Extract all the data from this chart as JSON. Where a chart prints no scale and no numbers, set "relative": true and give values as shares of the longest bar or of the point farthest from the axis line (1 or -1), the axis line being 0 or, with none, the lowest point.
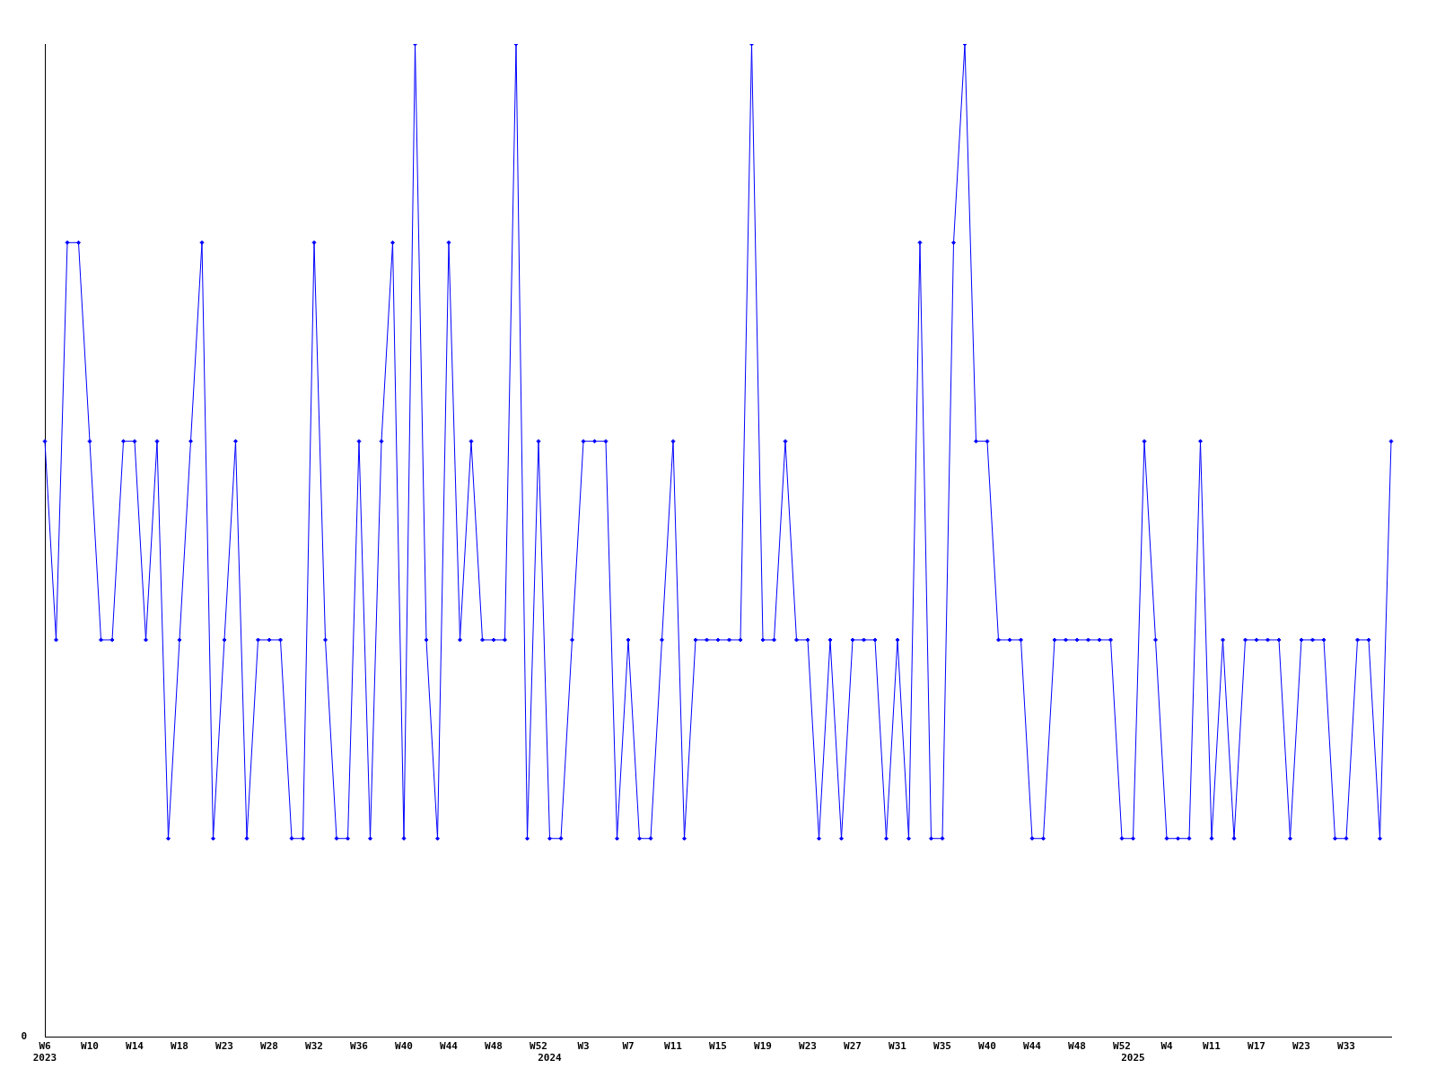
{
  "chart_data": {
    "type": "line",
    "relative": true,
    "annotations": [
      "0"
    ],
    "grid": false,
    "legend": false,
    "marker": "diamond",
    "line_style": "solid",
    "categories": [
      "W6\n2023",
      null,
      null,
      null,
      "W10",
      null,
      null,
      null,
      "W14",
      null,
      null,
      null,
      "W18",
      null,
      null,
      null,
      "W23",
      null,
      null,
      null,
      "W28",
      null,
      null,
      null,
      "W32",
      null,
      null,
      null,
      "W36",
      null,
      null,
      null,
      "W40",
      null,
      null,
      null,
      "W44",
      null,
      null,
      null,
      "W48",
      null,
      null,
      null,
      "W52",
      "\n2024",
      null,
      null,
      "W3",
      null,
      null,
      null,
      "W7",
      null,
      null,
      null,
      "W11",
      null,
      null,
      null,
      "W15",
      null,
      null,
      null,
      "W19",
      null,
      null,
      null,
      "W23",
      null,
      null,
      null,
      "W27",
      null,
      null,
      null,
      "W31",
      null,
      null,
      null,
      "W35",
      null,
      null,
      null,
      "W40",
      null,
      null,
      null,
      "W44",
      null,
      null,
      null,
      "W48",
      null,
      null,
      null,
      "W52",
      "\n2025",
      null,
      null,
      "W4",
      null,
      null,
      null,
      "W11",
      null,
      null,
      null,
      "W17",
      null,
      null,
      null,
      "W23",
      null,
      null,
      null,
      "W33",
      null,
      null,
      null,
      null
    ],
    "series": [
      {
        "color": "#0000ff",
        "values": [
          0.6,
          0.4,
          0.8,
          0.8,
          0.6,
          0.4,
          0.4,
          0.6,
          0.6,
          0.4,
          0.6,
          0.2,
          0.4,
          0.6,
          0.8,
          0.2,
          0.4,
          0.6,
          0.2,
          0.4,
          0.4,
          0.4,
          0.2,
          0.2,
          0.8,
          0.4,
          0.2,
          0.2,
          0.6,
          0.2,
          0.6,
          0.8,
          0.2,
          1,
          0.4,
          0.2,
          0.8,
          0.4,
          0.6,
          0.4,
          0.4,
          0.4,
          1,
          0.2,
          0.6,
          0.2,
          0.2,
          0.4,
          0.6,
          0.6,
          0.6,
          0.2,
          0.4,
          0.2,
          0.2,
          0.4,
          0.6,
          0.2,
          0.4,
          0.4,
          0.4,
          0.4,
          0.4,
          1,
          0.4,
          0.4,
          0.6,
          0.4,
          0.4,
          0.2,
          0.4,
          0.2,
          0.4,
          0.4,
          0.4,
          0.2,
          0.4,
          0.2,
          0.8,
          0.2,
          0.2,
          0.8,
          1,
          0.6,
          0.6,
          0.4,
          0.4,
          0.4,
          0.2,
          0.2,
          0.4,
          0.4,
          0.4,
          0.4,
          0.4,
          0.4,
          0.2,
          0.2,
          0.6,
          0.4,
          0.2,
          0.2,
          0.2,
          0.6,
          0.2,
          0.4,
          0.2,
          0.4,
          0.4,
          0.4,
          0.4,
          0.2,
          0.4,
          0.4,
          0.4,
          0.2,
          0.2,
          0.4,
          0.4,
          0.2,
          0.6
        ]
      }
    ]
  }
}
